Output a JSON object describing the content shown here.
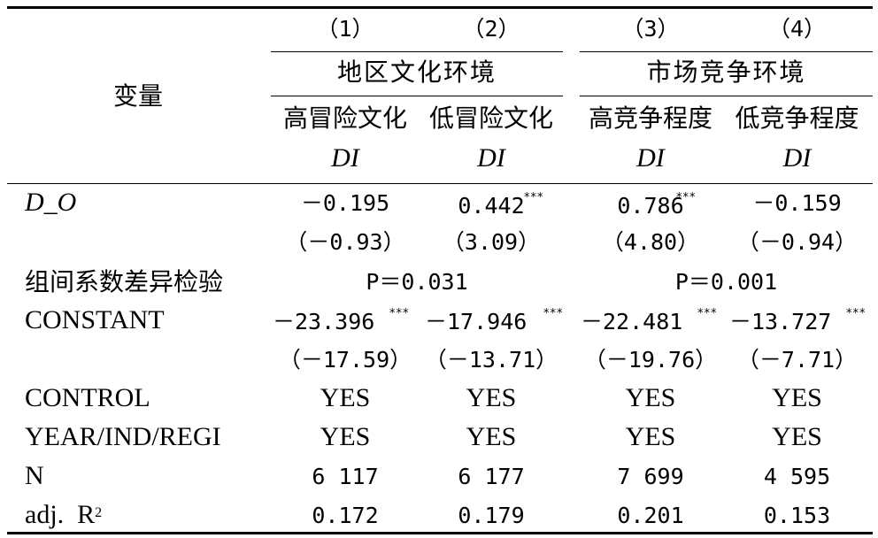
{
  "header": {
    "variable_label": "变量",
    "col_numbers": [
      "（1）",
      "（2）",
      "（3）",
      "（4）"
    ],
    "group_left": "地区文化环境",
    "group_right": "市场竞争环境",
    "subgroups": [
      "高冒险文化",
      "低冒险文化",
      "高竞争程度",
      "低竞争程度"
    ],
    "dep_var": [
      "DI",
      "DI",
      "DI",
      "DI"
    ]
  },
  "rows": {
    "do_label": "D_O",
    "do_coef": [
      "－0.195",
      "0.442",
      "0.786",
      "－0.159"
    ],
    "do_stars": [
      "",
      "***",
      "***",
      ""
    ],
    "do_t": [
      "（－0.93）",
      "（3.09）",
      "（4.80）",
      "（－0.94）"
    ],
    "diff_label": "组间系数差异检验",
    "diff_left": "P＝0.031",
    "diff_right": "P＝0.001",
    "const_label": "CONSTANT",
    "const_coef": [
      "－23.396",
      "－17.946",
      "－22.481",
      "－13.727"
    ],
    "const_stars": [
      "***",
      "***",
      "***",
      "***"
    ],
    "const_t": [
      "（－17.59）",
      "（－13.71）",
      "（－19.76）",
      "（－7.71）"
    ],
    "control_label": "CONTROL",
    "control_vals": [
      "YES",
      "YES",
      "YES",
      "YES"
    ],
    "fe_label": "YEAR/IND/REGI",
    "fe_vals": [
      "YES",
      "YES",
      "YES",
      "YES"
    ],
    "n_label": "N",
    "n_vals": [
      "6 117",
      "6 177",
      "7 699",
      "4 595"
    ],
    "r2_label": "adj.  R",
    "r2_sup": "2",
    "r2_vals": [
      "0.172",
      "0.179",
      "0.201",
      "0.153"
    ]
  }
}
